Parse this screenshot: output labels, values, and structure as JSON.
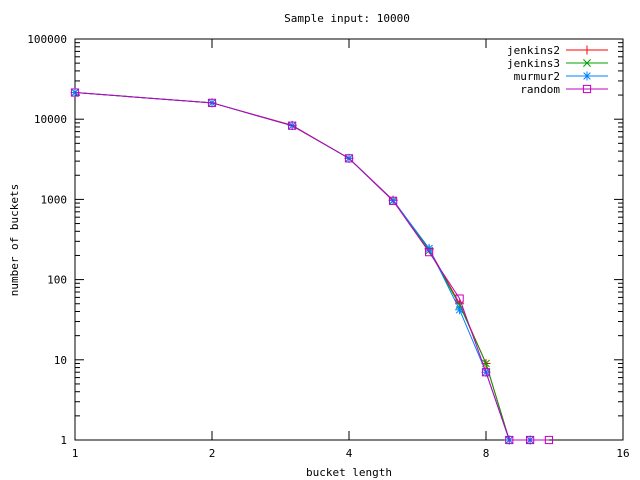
{
  "chart_data": {
    "type": "line",
    "title": "Sample input: 10000",
    "xlabel": "bucket length",
    "ylabel": "number of buckets",
    "x_scale": "log2",
    "y_scale": "log10",
    "xlim": [
      1,
      16
    ],
    "ylim": [
      1,
      100000
    ],
    "x_ticks": [
      1,
      2,
      4,
      8,
      16
    ],
    "x_tick_labels": [
      "1",
      "2",
      "4",
      "8",
      "16"
    ],
    "y_ticks": [
      1,
      10,
      100,
      1000,
      10000,
      100000
    ],
    "y_tick_labels": [
      "1",
      "10",
      "100",
      "1000",
      "10000",
      "100000"
    ],
    "grid": false,
    "legend_position": "top-right",
    "series": [
      {
        "name": "jenkins2",
        "color": "#ff0000",
        "marker": "plus",
        "points": [
          [
            1,
            21500
          ],
          [
            2,
            16000
          ],
          [
            3,
            8400
          ],
          [
            4,
            3250
          ],
          [
            5,
            980
          ],
          [
            6,
            240
          ],
          [
            7,
            50
          ],
          [
            8,
            9
          ],
          [
            9,
            1
          ],
          [
            10,
            1
          ]
        ]
      },
      {
        "name": "jenkins3",
        "color": "#00a000",
        "marker": "cross",
        "points": [
          [
            1,
            21500
          ],
          [
            2,
            16000
          ],
          [
            3,
            8300
          ],
          [
            4,
            3250
          ],
          [
            5,
            960
          ],
          [
            6,
            230
          ],
          [
            7,
            48
          ],
          [
            8,
            9
          ],
          [
            9,
            1
          ],
          [
            10,
            1
          ]
        ]
      },
      {
        "name": "murmur2",
        "color": "#0080ff",
        "marker": "star",
        "points": [
          [
            1,
            21500
          ],
          [
            2,
            16000
          ],
          [
            3,
            8300
          ],
          [
            4,
            3250
          ],
          [
            5,
            970
          ],
          [
            6,
            245
          ],
          [
            7,
            42
          ],
          [
            8,
            7
          ],
          [
            9,
            1
          ],
          [
            10,
            1
          ]
        ]
      },
      {
        "name": "random",
        "color": "#c000c0",
        "marker": "square",
        "points": [
          [
            1,
            21500
          ],
          [
            2,
            16000
          ],
          [
            3,
            8300
          ],
          [
            4,
            3250
          ],
          [
            5,
            960
          ],
          [
            6,
            220
          ],
          [
            7,
            58
          ],
          [
            8,
            7
          ],
          [
            9,
            1
          ],
          [
            10,
            1
          ],
          [
            11,
            1
          ]
        ]
      }
    ]
  }
}
